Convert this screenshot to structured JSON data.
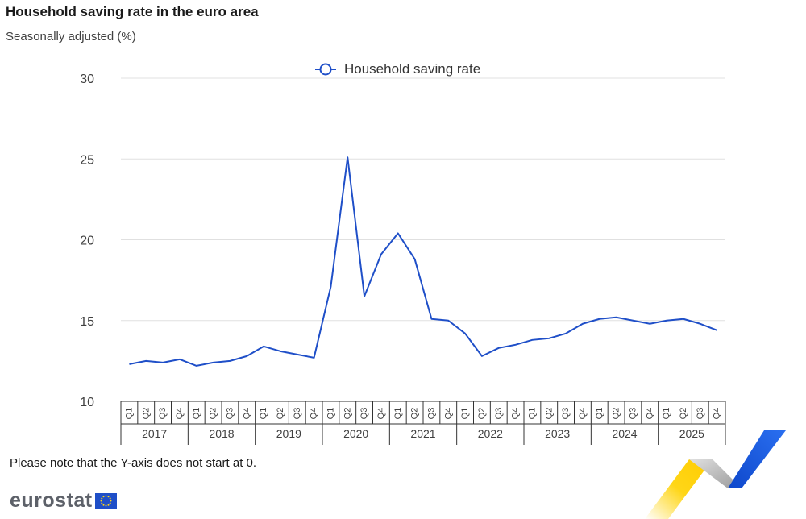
{
  "header": {
    "title": "Household saving rate in the euro area",
    "subtitle": "Seasonally adjusted (%)"
  },
  "note": "Please note that the Y-axis does not start at 0.",
  "logo": {
    "text": "eurostat"
  },
  "colors": {
    "series": "#1f4fc8",
    "grid": "#e0e0e0",
    "axis_text": "#404040"
  },
  "chart_data": {
    "type": "line",
    "title": "Household saving rate in the euro area",
    "subtitle": "Seasonally adjusted (%)",
    "ylim": [
      10,
      30
    ],
    "yticks": [
      10,
      15,
      20,
      25,
      30
    ],
    "grid": true,
    "legend_position": "top-center",
    "quarters": [
      "Q1",
      "Q2",
      "Q3",
      "Q4"
    ],
    "years": [
      "2017",
      "2018",
      "2019",
      "2020",
      "2021",
      "2022",
      "2023",
      "2024",
      "2025"
    ],
    "series": [
      {
        "name": "Household saving rate",
        "values": [
          12.3,
          12.5,
          12.4,
          12.6,
          12.2,
          12.4,
          12.5,
          12.8,
          13.4,
          13.1,
          12.9,
          12.7,
          17.1,
          25.1,
          16.5,
          19.1,
          20.4,
          18.8,
          15.1,
          15.0,
          14.2,
          12.8,
          13.3,
          13.5,
          13.8,
          13.9,
          14.2,
          14.8,
          15.1,
          15.2,
          15.0,
          14.8,
          15.0,
          15.1,
          14.8,
          14.4
        ]
      }
    ]
  }
}
